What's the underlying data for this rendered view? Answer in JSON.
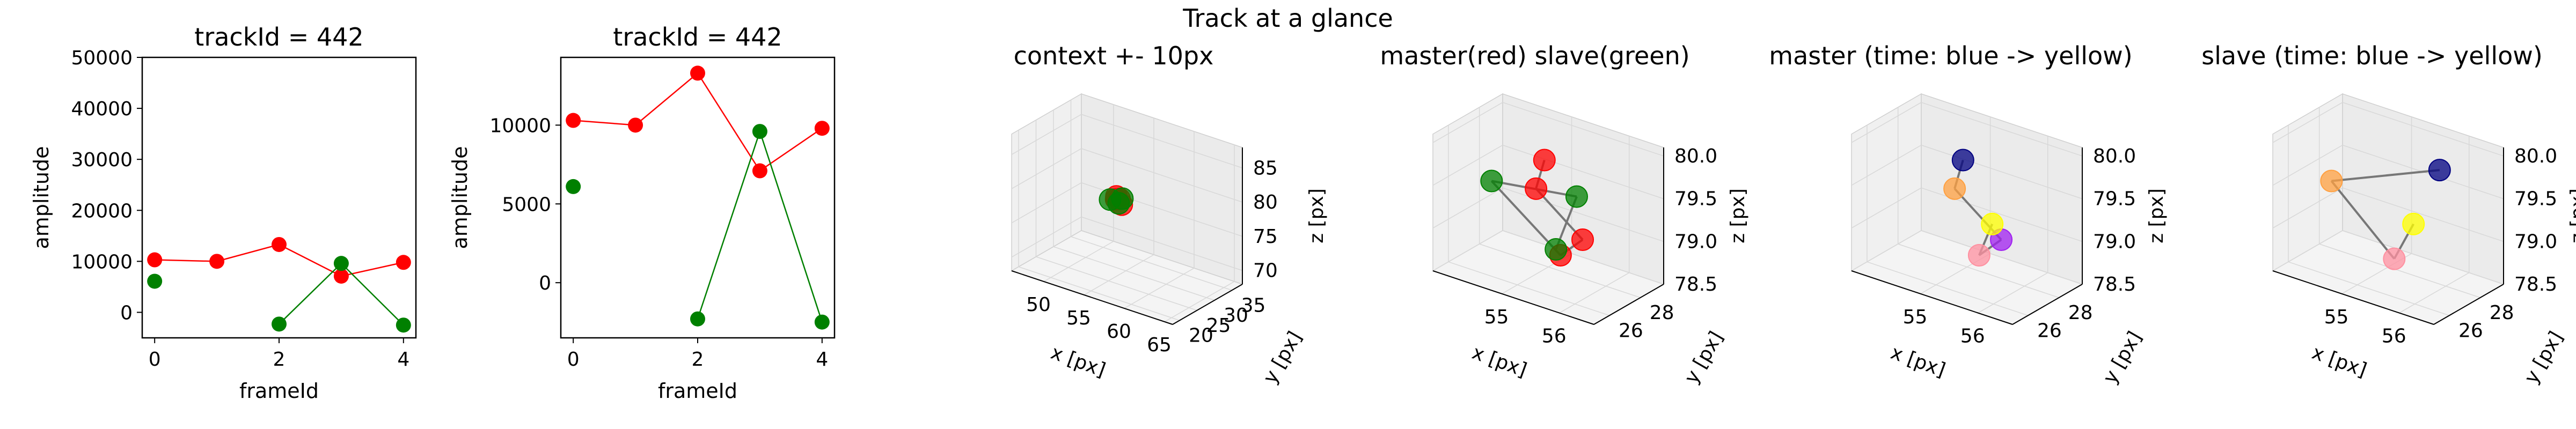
{
  "suptitle": "Track at a glance",
  "chart_data": [
    {
      "type": "line",
      "title": "trackId = 442",
      "xlabel": "frameId",
      "ylabel": "amplitude",
      "xlim": [
        -0.2,
        4.2
      ],
      "ylim": [
        -5000,
        50000
      ],
      "xticks": [
        "0",
        "2",
        "4"
      ],
      "yticks": [
        "0",
        "10000",
        "20000",
        "30000",
        "40000",
        "50000"
      ],
      "colors": {
        "red": "#ff0000",
        "green": "#008000"
      },
      "series": [
        {
          "color": "red",
          "points": [
            [
              0,
              10300
            ],
            [
              1,
              10000
            ],
            [
              2,
              13300
            ],
            [
              3,
              7100
            ],
            [
              4,
              9800
            ]
          ]
        },
        {
          "color": "green",
          "points": [
            [
              0,
              6100
            ]
          ],
          "connected": false
        },
        {
          "color": "green",
          "points": [
            [
              2,
              -2300
            ],
            [
              3,
              9600
            ],
            [
              4,
              -2500
            ]
          ]
        }
      ]
    },
    {
      "type": "line",
      "title": "trackId = 442",
      "xlabel": "frameId",
      "ylabel": "amplitude",
      "xlim": [
        -0.2,
        4.2
      ],
      "ylim": [
        -3500,
        14300
      ],
      "xticks": [
        "0",
        "2",
        "4"
      ],
      "yticks": [
        "0",
        "5000",
        "10000"
      ],
      "colors": {
        "red": "#ff0000",
        "green": "#008000"
      },
      "series": [
        {
          "color": "red",
          "points": [
            [
              0,
              10300
            ],
            [
              1,
              10000
            ],
            [
              2,
              13300
            ],
            [
              3,
              7100
            ],
            [
              4,
              9800
            ]
          ]
        },
        {
          "color": "green",
          "points": [
            [
              0,
              6100
            ]
          ],
          "connected": false
        },
        {
          "color": "green",
          "points": [
            [
              2,
              -2300
            ],
            [
              3,
              9600
            ],
            [
              4,
              -2500
            ]
          ]
        }
      ]
    },
    {
      "type": "scatter",
      "title": "context +- 10px",
      "projection": "3d",
      "xlabel": "x [px]",
      "ylabel": "y [px]",
      "zlabel": "z [px]",
      "xlim": [
        46,
        66
      ],
      "ylim": [
        18,
        38
      ],
      "zlim": [
        68,
        88
      ],
      "xticks": [
        "50",
        "55",
        "60",
        "65"
      ],
      "yticks": [
        "20",
        "25",
        "30",
        "35"
      ],
      "zticks": [
        "70",
        "75",
        "80",
        "85"
      ],
      "points": [
        {
          "x": 55.5,
          "y": 27.0,
          "z": 79.6,
          "color": "#ff0000"
        },
        {
          "x": 55.0,
          "y": 27.2,
          "z": 79.3,
          "color": "#ff0000"
        },
        {
          "x": 56.0,
          "y": 26.5,
          "z": 79.1,
          "color": "#ff0000"
        },
        {
          "x": 55.2,
          "y": 26.8,
          "z": 79.9,
          "color": "#ff0000"
        },
        {
          "x": 54.2,
          "y": 27.3,
          "z": 78.9,
          "color": "#008000"
        },
        {
          "x": 55.6,
          "y": 27.6,
          "z": 79.5,
          "color": "#008000"
        },
        {
          "x": 55.4,
          "y": 27.0,
          "z": 78.9,
          "color": "#008000"
        }
      ]
    },
    {
      "type": "scatter",
      "title": "master(red) slave(green)",
      "projection": "3d",
      "xlabel": "x [px]",
      "ylabel": "y [px]",
      "zlabel": "z [px]",
      "xlim": [
        53.8,
        56.6
      ],
      "ylim": [
        25,
        29.5
      ],
      "zlim": [
        78.5,
        80.1
      ],
      "xticks": [
        "55",
        "56"
      ],
      "yticks": [
        "26",
        "28"
      ],
      "zticks": [
        "78.5",
        "79.0",
        "79.5",
        "80.0"
      ],
      "points": [
        {
          "x": 55.2,
          "y": 27.0,
          "z": 79.9,
          "color": "#ff0000"
        },
        {
          "x": 55.0,
          "y": 27.2,
          "z": 79.5,
          "color": "#ff0000"
        },
        {
          "x": 56.0,
          "y": 26.5,
          "z": 79.2,
          "color": "#ff0000"
        },
        {
          "x": 55.4,
          "y": 27.3,
          "z": 78.8,
          "color": "#ff0000"
        },
        {
          "x": 54.2,
          "y": 27.3,
          "z": 79.4,
          "color": "#008000"
        },
        {
          "x": 55.6,
          "y": 27.6,
          "z": 79.5,
          "color": "#008000"
        },
        {
          "x": 55.4,
          "y": 27.0,
          "z": 78.9,
          "color": "#008000"
        }
      ]
    },
    {
      "type": "scatter",
      "title": "master (time: blue -> yellow)",
      "projection": "3d",
      "xlabel": "x [px]",
      "ylabel": "y [px]",
      "zlabel": "z [px]",
      "xlim": [
        53.8,
        56.6
      ],
      "ylim": [
        25,
        29.5
      ],
      "zlim": [
        78.5,
        80.1
      ],
      "xticks": [
        "55",
        "56"
      ],
      "yticks": [
        "26",
        "28"
      ],
      "zticks": [
        "78.5",
        "79.0",
        "79.5",
        "80.0"
      ],
      "points": [
        {
          "x": 55.2,
          "y": 27.0,
          "z": 79.9,
          "color": "#000080"
        },
        {
          "x": 55.0,
          "y": 27.2,
          "z": 79.5,
          "color": "#ffa040"
        },
        {
          "x": 56.0,
          "y": 26.5,
          "z": 79.2,
          "color": "#a020f0"
        },
        {
          "x": 55.4,
          "y": 27.3,
          "z": 78.8,
          "color": "#ff90a0"
        },
        {
          "x": 55.6,
          "y": 27.4,
          "z": 79.2,
          "color": "#ffff00"
        }
      ]
    },
    {
      "type": "scatter",
      "title": "slave (time: blue -> yellow)",
      "projection": "3d",
      "xlabel": "x [px]",
      "ylabel": "y [px]",
      "zlabel": "z [px]",
      "xlim": [
        53.8,
        56.6
      ],
      "ylim": [
        25,
        29.5
      ],
      "zlim": [
        78.5,
        80.1
      ],
      "xticks": [
        "55",
        "56"
      ],
      "yticks": [
        "26",
        "28"
      ],
      "zticks": [
        "78.5",
        "79.0",
        "79.5",
        "80.0"
      ],
      "points": [
        {
          "x": 56.0,
          "y": 27.6,
          "z": 79.9,
          "color": "#000080"
        },
        {
          "x": 54.2,
          "y": 27.3,
          "z": 79.4,
          "color": "#ffa040"
        },
        {
          "x": 55.4,
          "y": 26.9,
          "z": 78.8,
          "color": "#ff90a0"
        },
        {
          "x": 55.6,
          "y": 27.4,
          "z": 79.2,
          "color": "#ffff00"
        }
      ]
    }
  ]
}
